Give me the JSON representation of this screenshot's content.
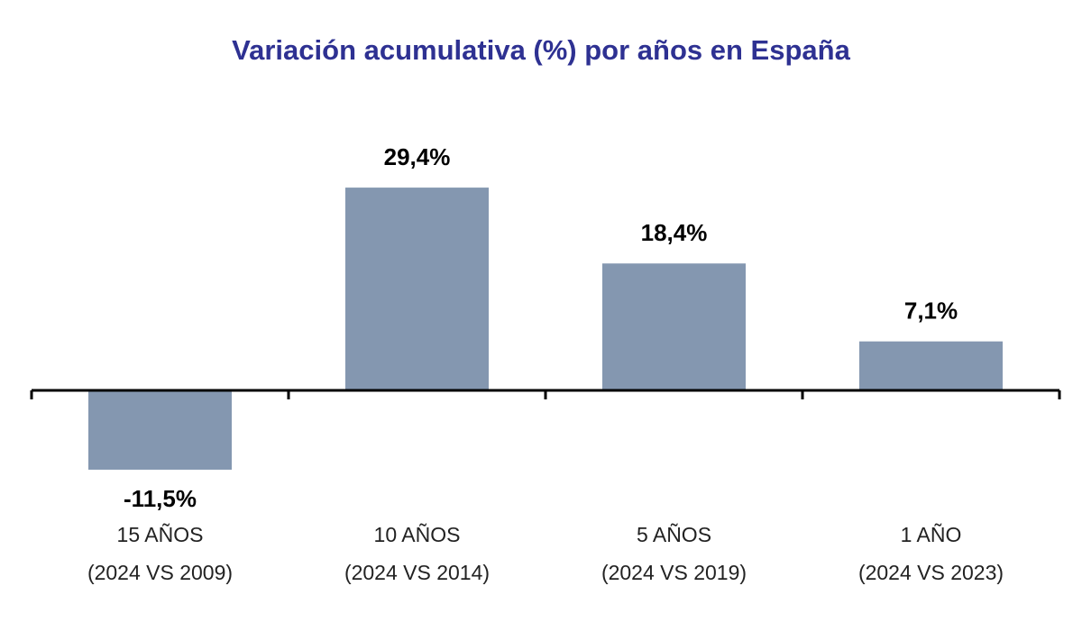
{
  "chart_data": {
    "type": "bar",
    "title": "Variación acumulativa (%) por años en España",
    "categories": [
      [
        "15 AÑOS",
        "(2024 VS 2009)"
      ],
      [
        "10 AÑOS",
        "(2024 VS 2014)"
      ],
      [
        "5 AÑOS",
        "(2024 VS 2019)"
      ],
      [
        "1 AÑO",
        "(2024 VS 2023)"
      ]
    ],
    "values": [
      -11.5,
      29.4,
      18.4,
      7.1
    ],
    "data_labels": [
      "-11,5%",
      "29,4%",
      "18,4%",
      "7,1%"
    ],
    "xlabel": "",
    "ylabel": "",
    "grid": false,
    "legend": "none",
    "colors": {
      "bar": "#8497b0",
      "title": "#2e3192",
      "axis": "#000000"
    }
  }
}
